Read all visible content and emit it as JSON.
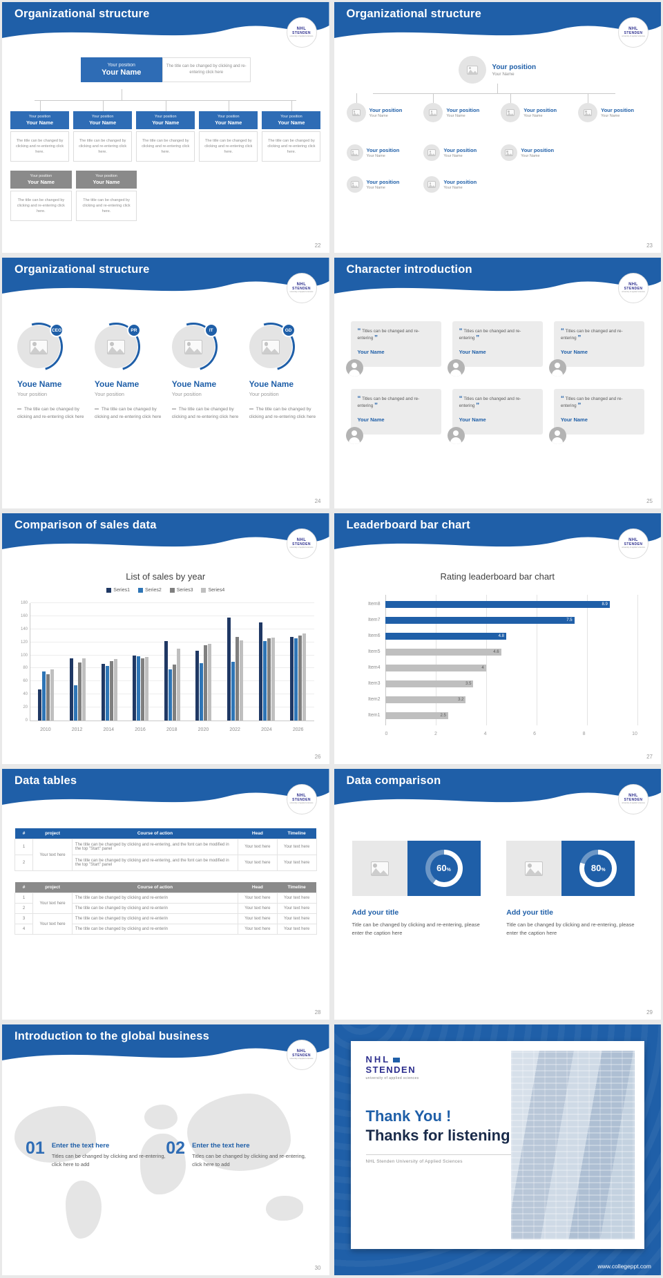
{
  "brand": {
    "blue": "#1f5fa8",
    "box_blue": "#2e6cb5",
    "gray_box": "#8a8a8a",
    "logo_top": "NHL",
    "logo_bottom": "STENDEN",
    "logo_sub": "university of applied sciences"
  },
  "icons": {
    "quote_open": "“",
    "quote_close": "”"
  },
  "slides": [
    {
      "id": "org-structure-boxes",
      "title": "Organizational structure",
      "page": "22",
      "root": {
        "position": "Your position",
        "name": "Your Name"
      },
      "root_note": "The title can be changed by clicking and re-entering click here",
      "level1": [
        {
          "position": "Your position",
          "name": "Your Name",
          "note": "The title can be changed by clicking and re-entering click here."
        },
        {
          "position": "Your position",
          "name": "Your Name",
          "note": "The title can be changed by clicking and re-entering click here."
        },
        {
          "position": "Your position",
          "name": "Your Name",
          "note": "The title can be changed by clicking and re-entering click here."
        },
        {
          "position": "Your position",
          "name": "Your Name",
          "note": "The title can be changed by clicking and re-entering click here."
        },
        {
          "position": "Your position",
          "name": "Your Name",
          "note": "The title can be changed by clicking and re-entering click here."
        }
      ],
      "level2": [
        {
          "position": "Your position",
          "name": "Your Name",
          "note": "The title can be changed by clicking and re-entering click here."
        },
        {
          "position": "Your position",
          "name": "Your Name",
          "note": "The title can be changed by clicking and re-entering click here."
        }
      ]
    },
    {
      "id": "org-structure-tree",
      "title": "Organizational structure",
      "page": "23",
      "root": {
        "position": "Your position",
        "name": "Your Name"
      },
      "level1": [
        {
          "position": "Your position",
          "name": "Your Name"
        },
        {
          "position": "Your position",
          "name": "Your Name"
        },
        {
          "position": "Your position",
          "name": "Your Name"
        },
        {
          "position": "Your position",
          "name": "Your Name"
        }
      ],
      "level2": [
        {
          "position": "Your position",
          "name": "Your Name"
        },
        {
          "position": "Your position",
          "name": "Your Name"
        },
        {
          "position": "Your position",
          "name": "Your Name"
        }
      ],
      "level3": [
        {
          "position": "Your position",
          "name": "Your Name"
        },
        {
          "position": "Your position",
          "name": "Your Name"
        }
      ]
    },
    {
      "id": "org-structure-people",
      "title": "Organizational structure",
      "page": "24",
      "members": [
        {
          "badge": "CEO",
          "name": "Youe Name",
          "position": "Your position",
          "note": "The title can be changed by clicking and re-entering click here"
        },
        {
          "badge": "PR",
          "name": "Youe Name",
          "position": "Your position",
          "note": "The title can be changed by clicking and re-entering click here"
        },
        {
          "badge": "IT",
          "name": "Youe Name",
          "position": "Your position",
          "note": "The title can be changed by clicking and re-entering click here"
        },
        {
          "badge": "GD",
          "name": "Youe Name",
          "position": "Your position",
          "note": "The title can be changed by clicking and re-entering click here"
        }
      ]
    },
    {
      "id": "character-introduction",
      "title": "Character introduction",
      "page": "25",
      "cards": [
        {
          "quote": "Titles can be changed and re-entering",
          "name": "Your Name"
        },
        {
          "quote": "Titles can be changed and re-entering",
          "name": "Your Name"
        },
        {
          "quote": "Titles can be changed and re-entering",
          "name": "Your Name"
        },
        {
          "quote": "Titles can be changed and re-entering",
          "name": "Your Name"
        },
        {
          "quote": "Titles can be changed and re-entering",
          "name": "Your Name"
        },
        {
          "quote": "Titles can be changed and re-entering",
          "name": "Your Name"
        }
      ]
    },
    {
      "id": "sales-comparison",
      "title": "Comparison of sales data",
      "page": "26",
      "chart_data": {
        "type": "bar",
        "title": "List of sales by year",
        "xlabel": "",
        "ylabel": "",
        "categories": [
          "2010",
          "2012",
          "2014",
          "2016",
          "2018",
          "2020",
          "2022",
          "2024",
          "2026"
        ],
        "series": [
          {
            "name": "Series1",
            "color": "#1f3864",
            "values": [
              48,
              95,
              87,
              100,
              122,
              107,
              158,
              150,
              128
            ]
          },
          {
            "name": "Series2",
            "color": "#2e75b6",
            "values": [
              75,
              54,
              84,
              98,
              78,
              88,
              90,
              122,
              126
            ]
          },
          {
            "name": "Series3",
            "color": "#7f7f7f",
            "values": [
              71,
              89,
              91,
              95,
              86,
              115,
              128,
              126,
              130
            ]
          },
          {
            "name": "Series4",
            "color": "#bfbfbf",
            "values": [
              78,
              95,
              94,
              97,
              110,
              118,
              123,
              127,
              133
            ]
          }
        ],
        "ylim": [
          0,
          180
        ],
        "ytick_step": 20,
        "legend_position": "top",
        "grid": true
      }
    },
    {
      "id": "leaderboard-bar-chart",
      "title": "Leaderboard bar chart",
      "page": "27",
      "chart_data": {
        "type": "bar",
        "orientation": "horizontal",
        "title": "Rating leaderboard bar chart",
        "xlabel": "",
        "ylabel": "",
        "categories": [
          "Item8",
          "Item7",
          "Item6",
          "Item5",
          "Item4",
          "Item3",
          "Item2",
          "Item1"
        ],
        "values": [
          8.9,
          7.5,
          4.8,
          4.6,
          4,
          3.5,
          3.2,
          2.5
        ],
        "colors": [
          "#1f5fa8",
          "#1f5fa8",
          "#1f5fa8",
          "#bfbfbf",
          "#bfbfbf",
          "#bfbfbf",
          "#bfbfbf",
          "#bfbfbf"
        ],
        "xlim": [
          0,
          10
        ],
        "xtick_step": 2,
        "grid": true
      }
    },
    {
      "id": "data-tables",
      "title": "Data tables",
      "page": "28",
      "table1": {
        "headers": [
          "#",
          "project",
          "Course of action",
          "Head",
          "Timeline"
        ],
        "rows": [
          [
            "1",
            {
              "text": "Your text here",
              "rowspan": 2
            },
            "The title can be changed by clicking and re-entering, and the font can be modified in the top \"Start\" panel",
            "Your text here",
            "Your text here"
          ],
          [
            "2",
            null,
            "The title can be changed by clicking and re-entering, and the font can be modified in the top \"Start\" panel",
            "Your text here",
            "Your text here"
          ]
        ]
      },
      "table2": {
        "headers": [
          "#",
          "project",
          "Course of action",
          "Head",
          "Timeline"
        ],
        "rows": [
          [
            "1",
            {
              "text": "Your text here",
              "rowspan": 2
            },
            "The title can be changed by clicking and re-enterin",
            "Your text here",
            "Your text here"
          ],
          [
            "2",
            null,
            "The title can be changed by clicking and re-enterin",
            "Your text here",
            "Your text here"
          ],
          [
            "3",
            {
              "text": "Your text here",
              "rowspan": 2
            },
            "The title can be changed by clicking and re-enterin",
            "Your text here",
            "Your text here"
          ],
          [
            "4",
            null,
            "The title can be changed by clicking and re-enterin",
            "Your text here",
            "Your text here"
          ]
        ]
      }
    },
    {
      "id": "data-comparison",
      "title": "Data comparison",
      "page": "29",
      "percent_sign": "%",
      "panels": [
        {
          "percent": 60,
          "title": "Add your title",
          "caption": "Title can be changed by clicking and re-entering, please enter the caption here"
        },
        {
          "percent": 80,
          "title": "Add your title",
          "caption": "Title can be changed by clicking and re-entering, please enter the caption here"
        }
      ]
    },
    {
      "id": "global-business",
      "title": "Introduction to the global business",
      "page": "30",
      "items": [
        {
          "num": "01",
          "title": "Enter the text here",
          "text": "Titles can be changed by clicking and re-entering, click here to add"
        },
        {
          "num": "02",
          "title": "Enter the text here",
          "text": "Titles can be changed by clicking and re-entering, click here to add"
        }
      ]
    },
    {
      "id": "thank-you",
      "thank_title": "Thank You !",
      "thank_sub": "Thanks for listening!",
      "org": "NHL Stenden University of Applied Sciences",
      "footer_url": "www.collegeppt.com"
    }
  ]
}
